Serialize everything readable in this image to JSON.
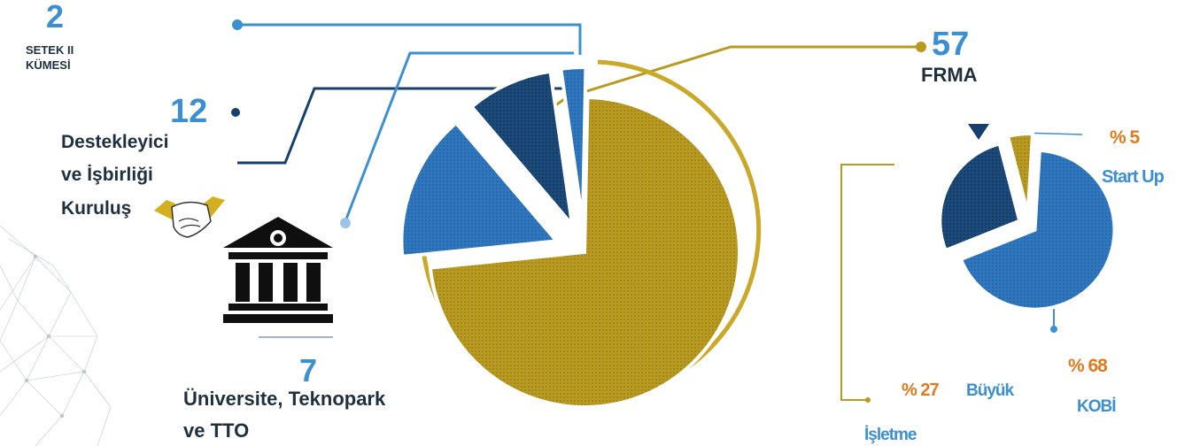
{
  "left_pie": {
    "setek": {
      "value": "2",
      "label_line1": "SETEK II",
      "label_line2": "KÜMESİ"
    },
    "destek": {
      "value": "12",
      "label_line1": "Destekleyici",
      "label_line2": "ve İşbirliği",
      "label_line3": "Kuruluş"
    },
    "uni": {
      "value": "7",
      "label_line1": "Üniversite, Teknopark",
      "label_line2": "ve TTO"
    },
    "firma": {
      "value": "57",
      "label": "FRMA"
    }
  },
  "right_pie": {
    "startup": {
      "pct": "% 5",
      "label": "Start Up"
    },
    "kobi": {
      "pct": "% 68",
      "label": "KOBİ"
    },
    "buyuk": {
      "pct": "% 27",
      "label_line1": "Büyük",
      "label_line2": "İşletme"
    }
  },
  "colors": {
    "gold": "#b89a20",
    "blue": "#2f78c0",
    "navy": "#173f6b",
    "orange": "#e07a1f",
    "light_blue": "#3c8fd0"
  },
  "chart_data": [
    {
      "type": "pie",
      "categories": [
        "SETEK II KÜMESİ",
        "Destekleyici ve İşbirliği Kuruluş",
        "Üniversite, Teknopark ve TTO",
        "FRMA"
      ],
      "values": [
        2,
        12,
        7,
        57
      ]
    },
    {
      "type": "pie",
      "categories": [
        "Start Up",
        "KOBİ",
        "Büyük İşletme"
      ],
      "values": [
        5,
        68,
        27
      ]
    }
  ]
}
